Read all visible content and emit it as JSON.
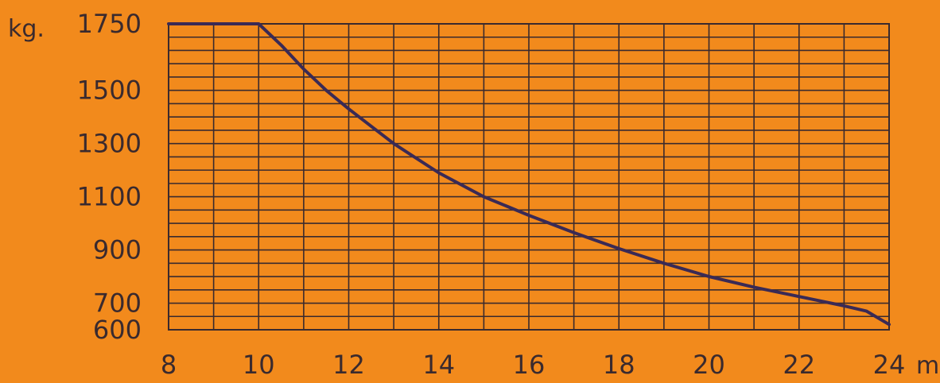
{
  "chart_data": {
    "type": "line",
    "title": "",
    "ylabel": "kg.",
    "xlabel": "m",
    "xlim": [
      8,
      24
    ],
    "ylim": [
      600,
      1750
    ],
    "xticks": [
      "8",
      "10",
      "12",
      "14",
      "16",
      "18",
      "20",
      "22",
      "24"
    ],
    "yticks": [
      "1750",
      "1500",
      "1300",
      "1100",
      "900",
      "700",
      "600"
    ],
    "grid": true,
    "series": [
      {
        "x": [
          8,
          9,
          10,
          10.5,
          11,
          11.5,
          12,
          12.5,
          13,
          14,
          15,
          16,
          17,
          18,
          19,
          20,
          21,
          22,
          23,
          23.5,
          24
        ],
        "y": [
          1750,
          1750,
          1750,
          1670,
          1580,
          1500,
          1430,
          1365,
          1300,
          1190,
          1100,
          1030,
          965,
          905,
          850,
          800,
          760,
          725,
          690,
          670,
          620
        ]
      }
    ],
    "colors": {
      "background": "#f28a1c",
      "grid": "#3a2a2e",
      "line": "#3a2a55",
      "text": "#3a2a2e"
    }
  }
}
